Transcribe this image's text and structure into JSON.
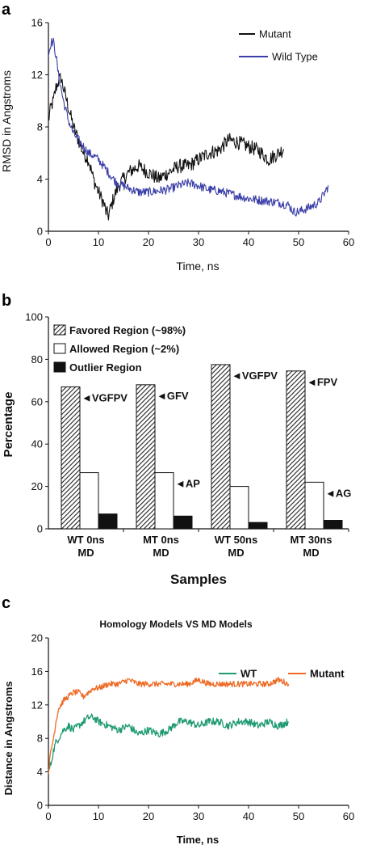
{
  "chart_data": [
    {
      "panel": "a",
      "type": "line",
      "xlabel": "Time, ns",
      "ylabel": "RMSD in Angstroms",
      "xlim": [
        0,
        60
      ],
      "ylim": [
        0,
        16
      ],
      "xticks": [
        0,
        10,
        20,
        30,
        40,
        50,
        60
      ],
      "yticks": [
        0,
        4,
        8,
        12,
        16
      ],
      "legend_position": "top-right",
      "series": [
        {
          "name": "Mutant",
          "color": "#111111",
          "x": [
            0,
            0.5,
            1,
            1.5,
            2,
            2.5,
            3,
            4,
            5,
            6,
            7,
            8,
            9,
            10,
            11,
            11.5,
            12,
            13,
            14,
            15,
            16,
            18,
            20,
            22,
            24,
            26,
            28,
            30,
            32,
            34,
            36,
            38,
            40,
            42,
            44,
            46,
            47
          ],
          "y": [
            8.5,
            9.5,
            10,
            11,
            11.5,
            11.8,
            11,
            9.5,
            8,
            7,
            6,
            5.5,
            4,
            3,
            2.2,
            1.5,
            1.2,
            2.5,
            3.5,
            4,
            4.5,
            5,
            4.5,
            4,
            4.5,
            5,
            5,
            5.5,
            6,
            6.2,
            7,
            6.8,
            6.5,
            6.2,
            5.5,
            6,
            6.3
          ]
        },
        {
          "name": "Wild Type",
          "color": "#3b3fa8",
          "x": [
            0,
            0.5,
            1,
            1.5,
            2,
            3,
            4,
            5,
            6,
            7,
            8,
            9,
            10,
            11,
            12,
            13,
            14,
            15,
            16,
            18,
            20,
            22,
            24,
            26,
            28,
            30,
            32,
            34,
            36,
            38,
            40,
            42,
            44,
            46,
            48,
            49,
            50,
            52,
            54,
            55,
            56
          ],
          "y": [
            13.5,
            14.5,
            14.5,
            13.5,
            12,
            10,
            8.5,
            7.5,
            7,
            6.5,
            6,
            5.8,
            5.5,
            5,
            4.5,
            4,
            3.6,
            3.5,
            3.3,
            3,
            3,
            3.1,
            3.2,
            3.5,
            3.7,
            3.5,
            3.2,
            3.1,
            2.9,
            2.7,
            2.5,
            2.4,
            2.3,
            2.2,
            2,
            1.5,
            1.5,
            1.8,
            2.2,
            2.8,
            3.5
          ]
        }
      ]
    },
    {
      "panel": "b",
      "type": "bar",
      "xlabel": "Samples",
      "ylabel": "Percentage",
      "ylim": [
        0,
        100
      ],
      "yticks": [
        0,
        20,
        40,
        60,
        80,
        100
      ],
      "legend_position": "top-left",
      "categories": [
        [
          "WT 0ns",
          "MD"
        ],
        [
          "MT 0ns",
          "MD"
        ],
        [
          "WT 50ns",
          "MD"
        ],
        [
          "MT 30ns",
          "MD"
        ]
      ],
      "series": [
        {
          "name": "Favored Region (~98%)",
          "pattern": "hatched",
          "values": [
            67,
            68,
            77.5,
            74.5
          ]
        },
        {
          "name": "Allowed Region (~2%)",
          "pattern": "white",
          "values": [
            26.5,
            26.5,
            20,
            22
          ]
        },
        {
          "name": "Outlier Region",
          "pattern": "black",
          "values": [
            7,
            6,
            3,
            4
          ]
        }
      ],
      "annotations": [
        {
          "category": 0,
          "series": 0,
          "text": "◄VGFPV"
        },
        {
          "category": 1,
          "series": 0,
          "text": "◄GFV"
        },
        {
          "category": 2,
          "series": 0,
          "text": "◄VGFPV"
        },
        {
          "category": 3,
          "series": 0,
          "text": "◄FPV"
        },
        {
          "category": 1,
          "series": 1,
          "text": "◄AP"
        },
        {
          "category": 3,
          "series": 1,
          "text": "◄AG"
        }
      ]
    },
    {
      "panel": "c",
      "type": "line",
      "title": "Homology Models VS MD Models",
      "xlabel": "Time, ns",
      "ylabel": "Distance in Angstroms",
      "xlim": [
        0,
        60
      ],
      "ylim": [
        0,
        20
      ],
      "xticks": [
        0,
        10,
        20,
        30,
        40,
        50,
        60
      ],
      "yticks": [
        0,
        4,
        8,
        12,
        16,
        20
      ],
      "legend_position": "top-right",
      "series": [
        {
          "name": "WT",
          "color": "#1f9a73",
          "x": [
            0,
            0.5,
            1,
            1.5,
            2,
            3,
            4,
            5,
            6,
            7,
            8,
            9,
            10,
            12,
            14,
            16,
            18,
            20,
            22,
            24,
            26,
            28,
            30,
            32,
            34,
            36,
            38,
            40,
            42,
            44,
            46,
            48
          ],
          "y": [
            4,
            5,
            6.5,
            7.5,
            8,
            9,
            9.5,
            9,
            9.5,
            10,
            10.5,
            10.5,
            10,
            9.5,
            9,
            9.5,
            8.5,
            9,
            8.5,
            9,
            10,
            10,
            9.5,
            10,
            10,
            9.5,
            10,
            10,
            9.5,
            10,
            9.5,
            10
          ]
        },
        {
          "name": "Mutant",
          "color": "#ee6a24",
          "x": [
            0,
            0.5,
            1,
            1.5,
            2,
            3,
            4,
            5,
            6,
            7,
            8,
            9,
            10,
            12,
            14,
            16,
            18,
            20,
            22,
            24,
            26,
            28,
            30,
            32,
            34,
            36,
            38,
            40,
            42,
            44,
            46,
            48
          ],
          "y": [
            4,
            6.5,
            8,
            10,
            11.5,
            12.5,
            13,
            13.5,
            13.5,
            13,
            13.5,
            14,
            14,
            14.5,
            14.5,
            15,
            14.5,
            14.5,
            14.5,
            14.5,
            14.5,
            14.5,
            15,
            14.5,
            14.5,
            14.5,
            14.5,
            14.5,
            14.5,
            14.5,
            15,
            14.5
          ]
        }
      ]
    }
  ]
}
